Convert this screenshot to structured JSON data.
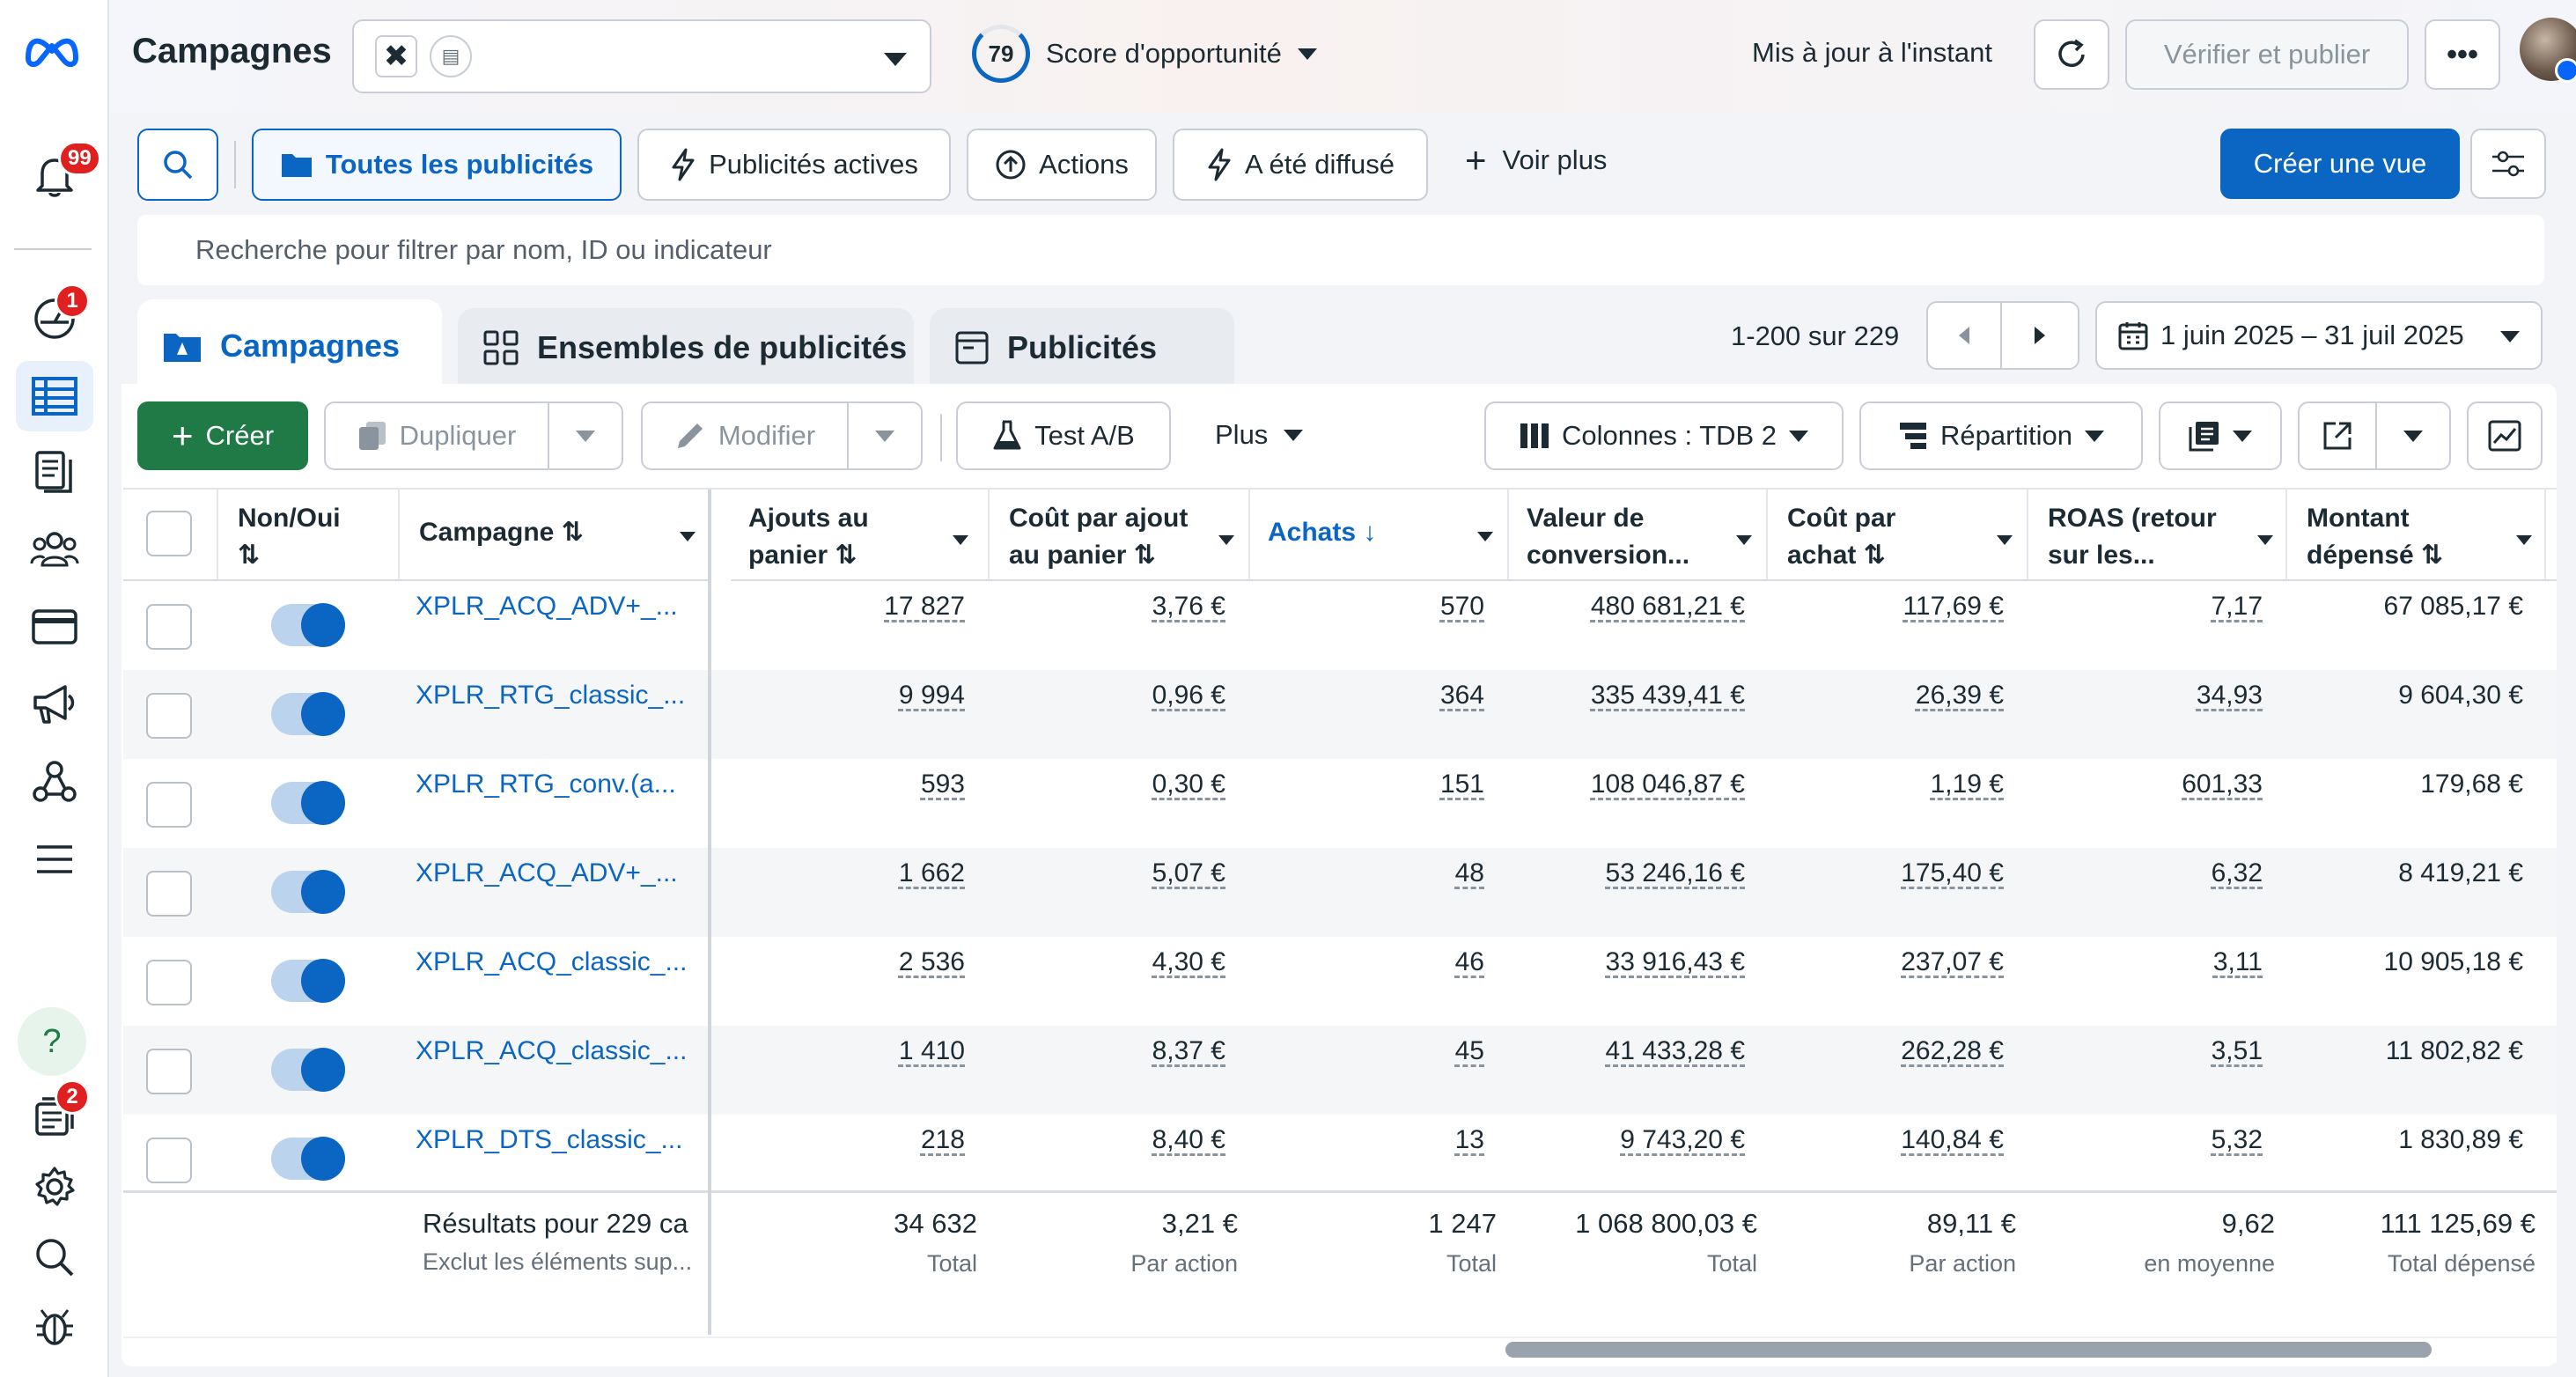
{
  "sidebar": {
    "notifications_count": "99",
    "ads_manager_badge": "1",
    "bottom_badge": "2"
  },
  "header": {
    "title": "Campagnes",
    "opportunity_score": "79",
    "opportunity_label": "Score d'opportunité",
    "updated_text": "Mis à jour à l'instant",
    "review_publish": "Vérifier et publier"
  },
  "filters": {
    "all_ads": "Toutes les publicités",
    "active_ads": "Publicités actives",
    "actions": "Actions",
    "delivered": "A été diffusé",
    "see_more": "Voir plus",
    "create_view": "Créer une vue",
    "search_placeholder": "Recherche pour filtrer par nom, ID ou indicateur"
  },
  "tabs": {
    "campaigns": "Campagnes",
    "ad_sets": "Ensembles de publicités",
    "ads": "Publicités"
  },
  "pagination": {
    "range": "1-200 sur 229",
    "date_range": "1 juin 2025 – 31 juil 2025"
  },
  "toolbar": {
    "create": "Créer",
    "duplicate": "Dupliquer",
    "edit": "Modifier",
    "ab_test": "Test A/B",
    "more": "Plus",
    "columns": "Colonnes : TDB 2",
    "breakdown": "Répartition"
  },
  "columns": {
    "onoff": "Non/Oui",
    "campaign": "Campagne",
    "add_to_cart_1": "Ajouts au",
    "add_to_cart_2": "panier",
    "cpa_cart_1": "Coût par ajout",
    "cpa_cart_2": "au panier",
    "purchases": "Achats",
    "conv_value_1": "Valeur de",
    "conv_value_2": "conversion...",
    "cpa_purchase_1": "Coût par",
    "cpa_purchase_2": "achat",
    "roas_1": "ROAS (retour",
    "roas_2": "sur les...",
    "spend_1": "Montant",
    "spend_2": "dépensé"
  },
  "rows": [
    {
      "name": "XPLR_ACQ_ADV+_...",
      "carts": "17 827",
      "cost_cart": "3,76 €",
      "purchases": "570",
      "value": "480 681,21 €",
      "cost_purchase": "117,69 €",
      "roas": "7,17",
      "spend": "67 085,17 €"
    },
    {
      "name": "XPLR_RTG_classic_...",
      "carts": "9 994",
      "cost_cart": "0,96 €",
      "purchases": "364",
      "value": "335 439,41 €",
      "cost_purchase": "26,39 €",
      "roas": "34,93",
      "spend": "9 604,30 €"
    },
    {
      "name": "XPLR_RTG_conv.(a...",
      "carts": "593",
      "cost_cart": "0,30 €",
      "purchases": "151",
      "value": "108 046,87 €",
      "cost_purchase": "1,19 €",
      "roas": "601,33",
      "spend": "179,68 €"
    },
    {
      "name": "XPLR_ACQ_ADV+_...",
      "carts": "1 662",
      "cost_cart": "5,07 €",
      "purchases": "48",
      "value": "53 246,16 €",
      "cost_purchase": "175,40 €",
      "roas": "6,32",
      "spend": "8 419,21 €"
    },
    {
      "name": "XPLR_ACQ_classic_...",
      "carts": "2 536",
      "cost_cart": "4,30 €",
      "purchases": "46",
      "value": "33 916,43 €",
      "cost_purchase": "237,07 €",
      "roas": "3,11",
      "spend": "10 905,18 €"
    },
    {
      "name": "XPLR_ACQ_classic_...",
      "carts": "1 410",
      "cost_cart": "8,37 €",
      "purchases": "45",
      "value": "41 433,28 €",
      "cost_purchase": "262,28 €",
      "roas": "3,51",
      "spend": "11 802,82 €"
    },
    {
      "name": "XPLR_DTS_classic_...",
      "carts": "218",
      "cost_cart": "8,40 €",
      "purchases": "13",
      "value": "9 743,20 €",
      "cost_purchase": "140,84 €",
      "roas": "5,32",
      "spend": "1 830,89 €"
    }
  ],
  "totals": {
    "label": "Résultats pour 229 ca",
    "sublabel": "Exclut les éléments sup...",
    "carts": "34 632",
    "carts_sub": "Total",
    "cost_cart": "3,21 €",
    "cost_cart_sub": "Par action",
    "purchases": "1 247",
    "purchases_sub": "Total",
    "value": "1 068 800,03 €",
    "value_sub": "Total",
    "cost_purchase": "89,11 €",
    "cost_purchase_sub": "Par action",
    "roas": "9,62",
    "roas_sub": "en moyenne",
    "spend": "111 125,69 €",
    "spend_sub": "Total dépensé"
  },
  "colors": {
    "accent": "#0a66c2",
    "create_green": "#1f7a46",
    "badge_red": "#e02020"
  }
}
